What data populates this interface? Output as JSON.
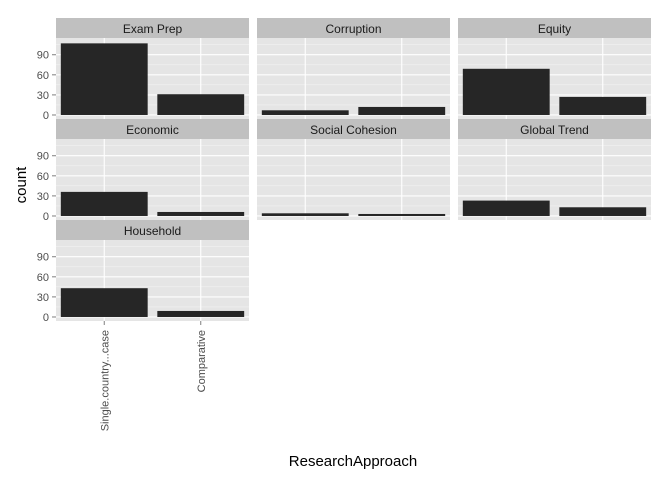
{
  "chart_data": {
    "type": "bar",
    "facet": "wrap",
    "ncol": 3,
    "xlabel": "ResearchApproach",
    "ylabel": "count",
    "categories": [
      "Single.country...case",
      "Comparative"
    ],
    "yticks": [
      0,
      30,
      60,
      90
    ],
    "ylim": [
      -6,
      115
    ],
    "grid": true,
    "panels": [
      {
        "name": "Exam Prep",
        "values": [
          107,
          31
        ]
      },
      {
        "name": "Corruption",
        "values": [
          7,
          12
        ]
      },
      {
        "name": "Equity",
        "values": [
          69,
          27
        ]
      },
      {
        "name": "Economic",
        "values": [
          36,
          6
        ]
      },
      {
        "name": "Social Cohesion",
        "values": [
          4,
          3
        ]
      },
      {
        "name": "Global Trend",
        "values": [
          23,
          13
        ]
      },
      {
        "name": "Household",
        "values": [
          43,
          9
        ]
      }
    ],
    "colors": {
      "bar": "#262626",
      "panel_bg": "#e5e5e5",
      "strip_bg": "#c0c0c0",
      "grid_major": "#ffffff",
      "grid_minor": "#f2f2f2"
    }
  }
}
